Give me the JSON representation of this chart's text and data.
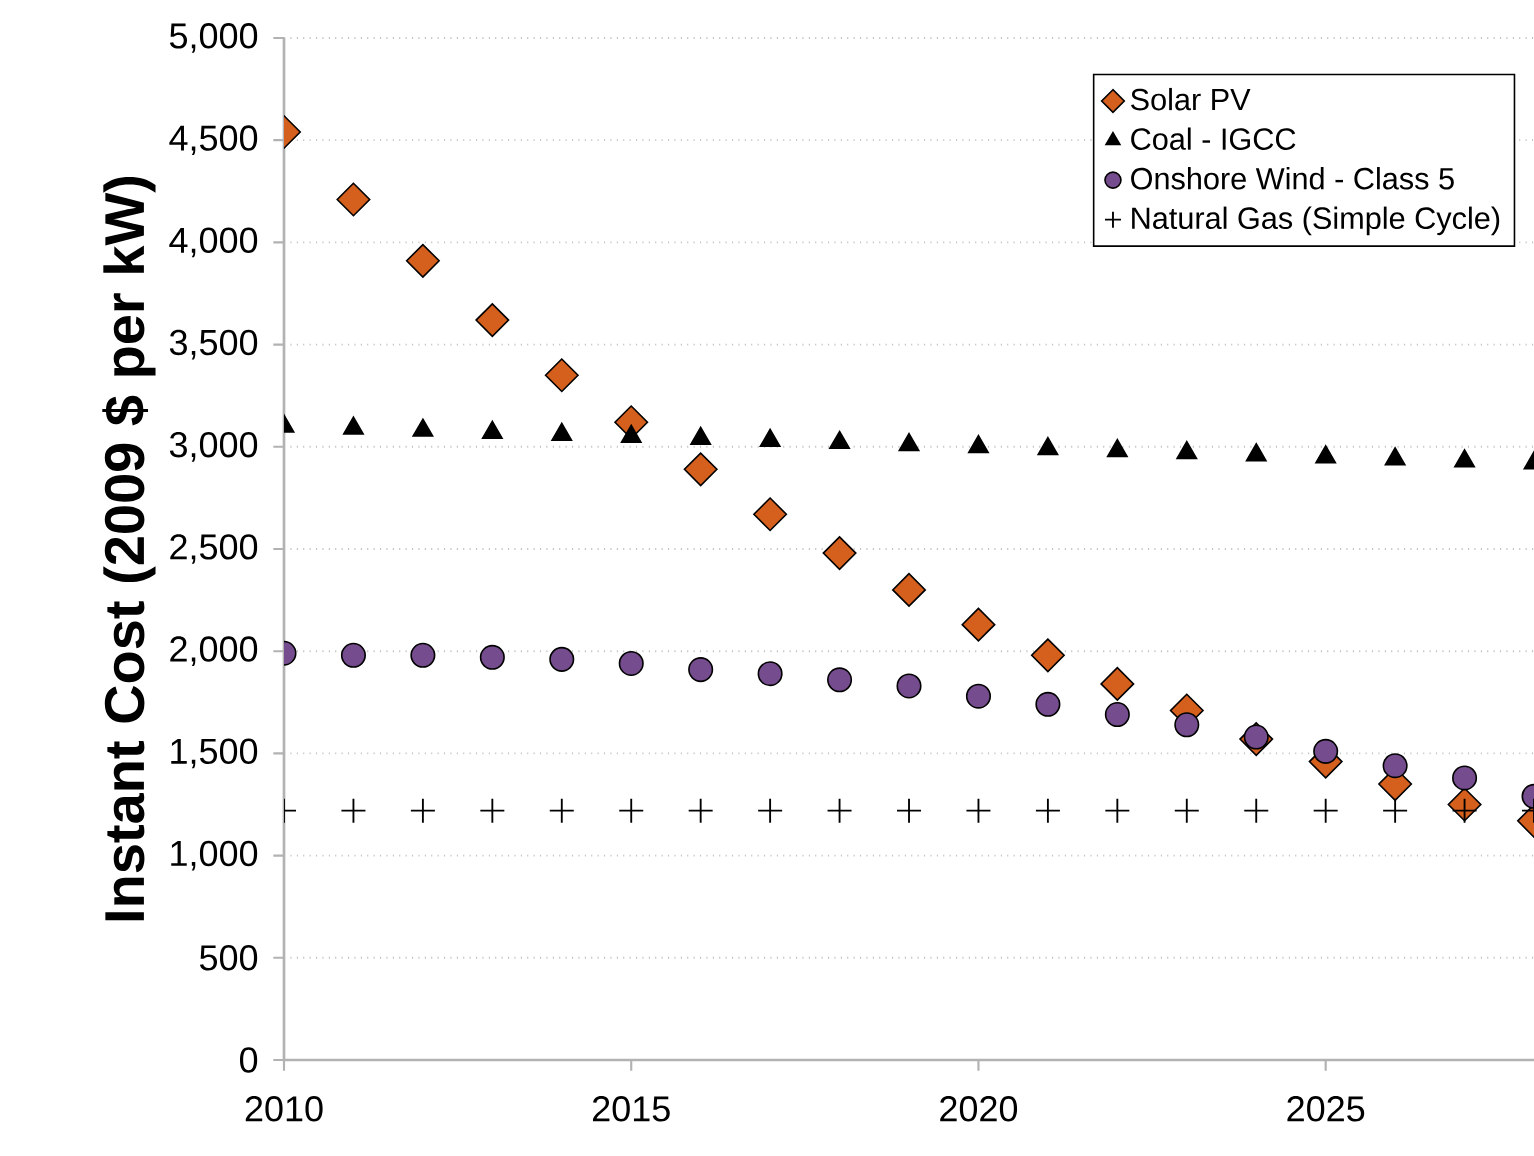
{
  "chart_data": {
    "type": "scatter",
    "ylabel": "Instant Cost (2009 $ per kW)",
    "x": [
      2010,
      2011,
      2012,
      2013,
      2014,
      2015,
      2016,
      2017,
      2018,
      2019,
      2020,
      2021,
      2022,
      2023,
      2024,
      2025,
      2026,
      2027,
      2028
    ],
    "xlim": [
      2010,
      2028
    ],
    "xticks": [
      2010,
      2015,
      2020,
      2025
    ],
    "ylim": [
      0,
      5000
    ],
    "yticks": [
      {
        "value": 0,
        "label": "0"
      },
      {
        "value": 500,
        "label": "500"
      },
      {
        "value": 1000,
        "label": "1,000"
      },
      {
        "value": 1500,
        "label": "1,500"
      },
      {
        "value": 2000,
        "label": "2,000"
      },
      {
        "value": 2500,
        "label": "2,500"
      },
      {
        "value": 3000,
        "label": "3,000"
      },
      {
        "value": 3500,
        "label": "3,500"
      },
      {
        "value": 4000,
        "label": "4,000"
      },
      {
        "value": 4500,
        "label": "4,500"
      },
      {
        "value": 5000,
        "label": "5,000"
      }
    ],
    "grid": "y",
    "legend": "top right",
    "series": [
      {
        "name": "Solar PV",
        "color": "#d55f1c",
        "marker": "diamond",
        "values": [
          4540,
          4210,
          3910,
          3620,
          3350,
          3120,
          2890,
          2670,
          2480,
          2300,
          2130,
          1980,
          1840,
          1710,
          1570,
          1460,
          1350,
          1250,
          1170
        ]
      },
      {
        "name": "Coal - IGCC",
        "color": "#000000",
        "marker": "triangle",
        "values": [
          3100,
          3090,
          3080,
          3070,
          3060,
          3050,
          3040,
          3030,
          3020,
          3010,
          3000,
          2990,
          2980,
          2970,
          2960,
          2950,
          2940,
          2930,
          2920
        ]
      },
      {
        "name": "Onshore Wind - Class 5",
        "color": "#754c8d",
        "marker": "circle",
        "values": [
          1990,
          1980,
          1980,
          1970,
          1960,
          1940,
          1910,
          1890,
          1860,
          1830,
          1780,
          1740,
          1690,
          1640,
          1580,
          1510,
          1440,
          1380,
          1290
        ]
      },
      {
        "name": "Natural Gas (Simple Cycle)",
        "color": "#000000",
        "marker": "cross",
        "values": [
          1220,
          1220,
          1220,
          1220,
          1220,
          1220,
          1220,
          1220,
          1220,
          1220,
          1220,
          1220,
          1220,
          1220,
          1220,
          1220,
          1220,
          1220,
          1220
        ]
      }
    ]
  }
}
